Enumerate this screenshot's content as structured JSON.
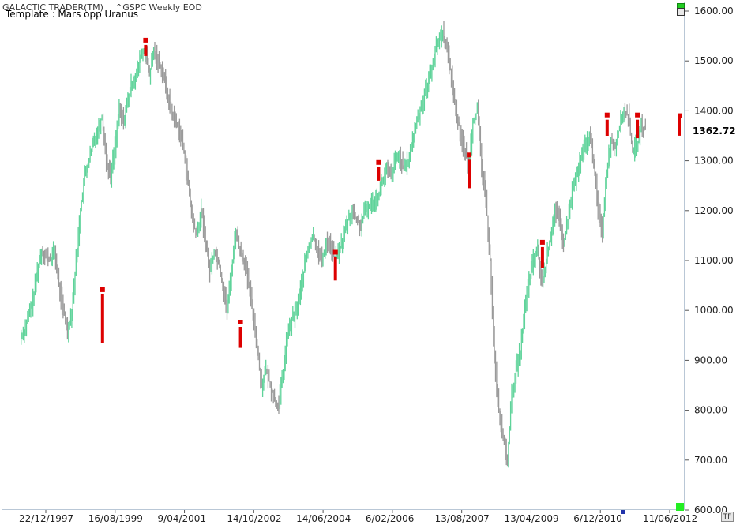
{
  "header": {
    "app_title": "GALACTIC TRADER(TM)",
    "symbol": "^GSPC Weekly EOD",
    "template": "Template : Mars opp Uranus"
  },
  "toolbar": {
    "tf_label": "TF"
  },
  "colors": {
    "up": "#5fd39a",
    "down": "#9a9a9a",
    "signal": "#dd0000",
    "border": "#b9c7d6"
  },
  "chart_data": {
    "type": "line",
    "x_tick_labels": [
      "22/12/1997",
      "16/08/1999",
      "9/04/2001",
      "14/10/2002",
      "14/06/2004",
      "6/02/2006",
      "13/08/2007",
      "13/04/2009",
      "6/12/2010",
      "11/06/2012"
    ],
    "y_ticks": [
      600,
      700,
      800,
      900,
      1000,
      1100,
      1200,
      1300,
      1400,
      1500,
      1600
    ],
    "y_tick_labels": [
      "600.00",
      "700.00",
      "800.00",
      "900.00",
      "1000.00",
      "1100.00",
      "1200.00",
      "1300.00",
      "1400.00",
      "1500.00",
      "1600.00"
    ],
    "ylim": [
      600,
      1600
    ],
    "last_price": "1362.72",
    "series": [
      {
        "values": [
          945,
          960,
          990,
          1020,
          1080,
          1120,
          1110,
          1100,
          1120,
          1050,
          1000,
          960,
          1000,
          1100,
          1200,
          1270,
          1300,
          1340,
          1360,
          1390,
          1300,
          1270,
          1330,
          1400,
          1380,
          1420,
          1460,
          1470,
          1510,
          1520,
          1470,
          1520,
          1500,
          1480,
          1440,
          1400,
          1380,
          1360,
          1320,
          1250,
          1180,
          1150,
          1200,
          1140,
          1080,
          1120,
          1100,
          1050,
          1000,
          1080,
          1160,
          1120,
          1100,
          1050,
          1000,
          920,
          850,
          880,
          850,
          820,
          810,
          880,
          950,
          980,
          1000,
          1040,
          1090,
          1130,
          1150,
          1120,
          1100,
          1140,
          1130,
          1100,
          1120,
          1150,
          1180,
          1200,
          1180,
          1170,
          1200,
          1210,
          1220,
          1230,
          1260,
          1280,
          1270,
          1300,
          1310,
          1280,
          1300,
          1340,
          1380,
          1410,
          1440,
          1470,
          1510,
          1540,
          1560,
          1520,
          1470,
          1400,
          1360,
          1320,
          1290,
          1380,
          1400,
          1290,
          1220,
          1100,
          900,
          800,
          740,
          700,
          830,
          880,
          920,
          1000,
          1060,
          1100,
          1120,
          1050,
          1100,
          1150,
          1200,
          1180,
          1130,
          1180,
          1240,
          1270,
          1300,
          1330,
          1350,
          1300,
          1200,
          1160,
          1280,
          1340,
          1330,
          1370,
          1400,
          1390,
          1320,
          1330,
          1370,
          1362.72
        ]
      }
    ],
    "annotations": {
      "signal_bars": [
        {
          "x_index": 19,
          "top": 1040,
          "bottom": 935
        },
        {
          "x_index": 29,
          "top": 1540,
          "bottom": 1510
        },
        {
          "x_index": 51,
          "top": 975,
          "bottom": 925
        },
        {
          "x_index": 73,
          "top": 1115,
          "bottom": 1060
        },
        {
          "x_index": 83,
          "top": 1295,
          "bottom": 1260
        },
        {
          "x_index": 104,
          "top": 1310,
          "bottom": 1245
        },
        {
          "x_index": 121,
          "top": 1135,
          "bottom": 1085
        },
        {
          "x_index": 136,
          "top": 1390,
          "bottom": 1350
        },
        {
          "x_index": 143,
          "top": 1390,
          "bottom": 1345
        }
      ]
    }
  }
}
